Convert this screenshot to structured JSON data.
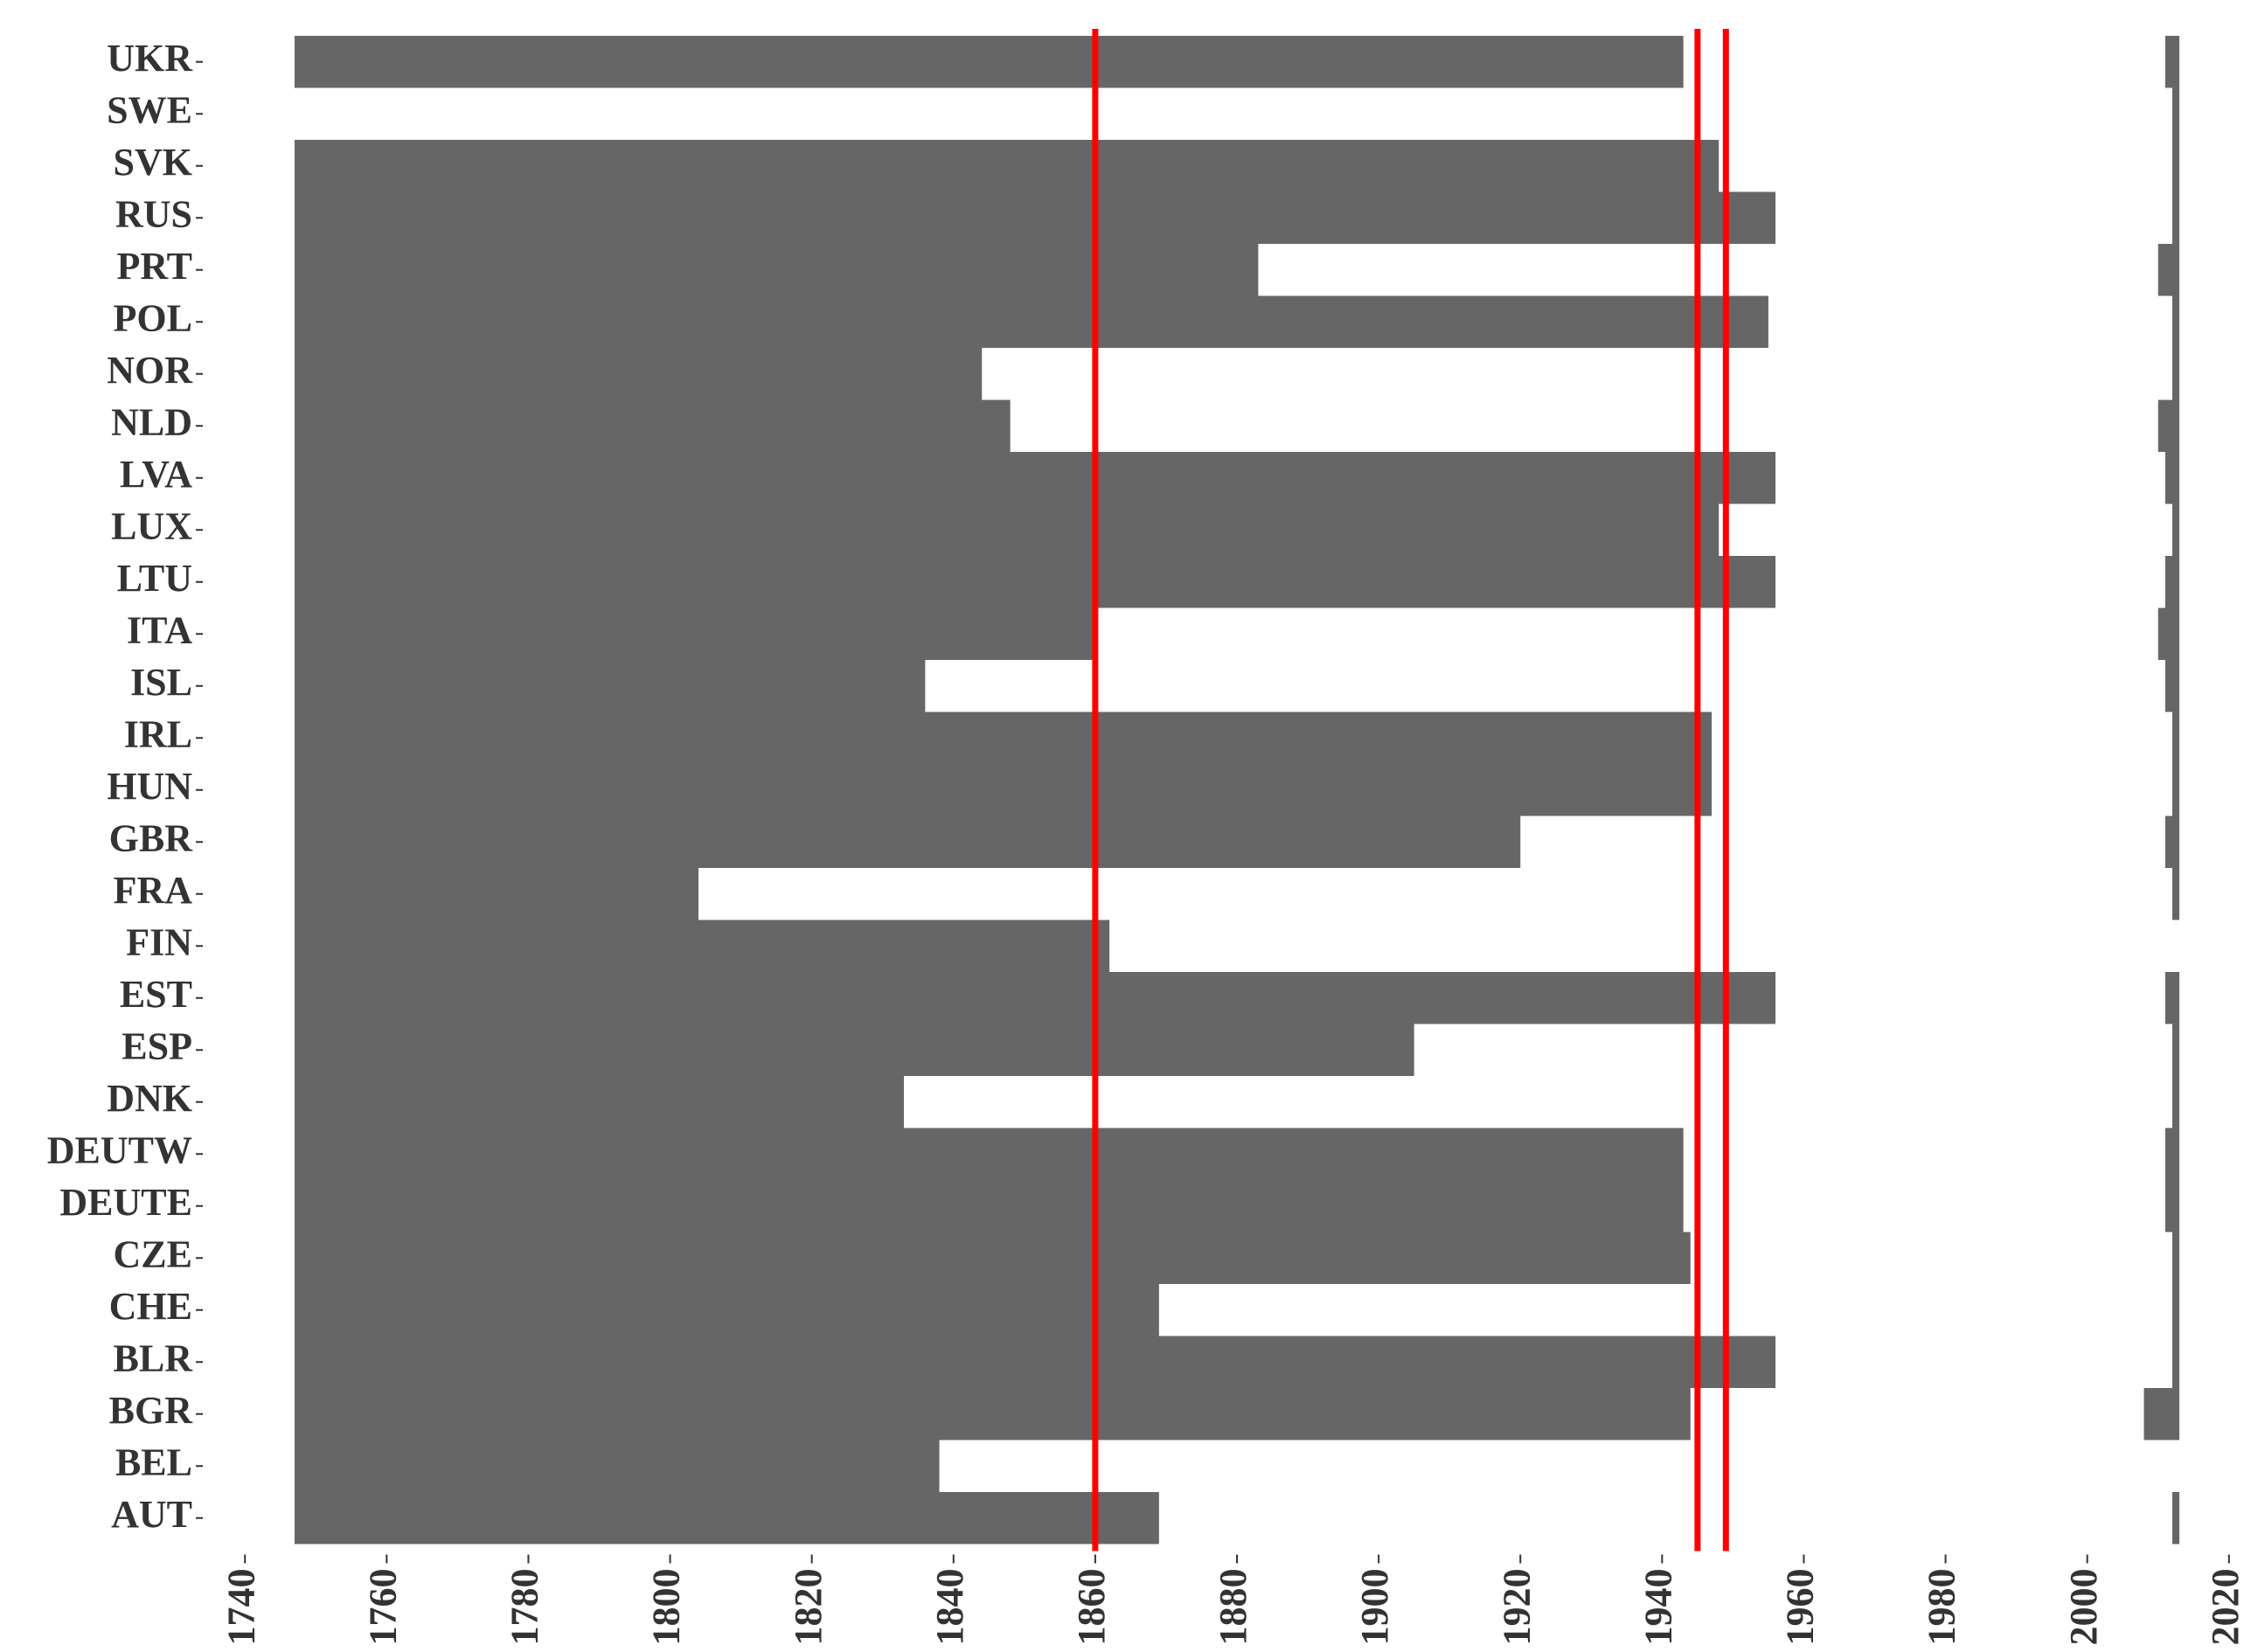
{
  "chart_data": {
    "type": "range_bar",
    "categories": [
      "UKR",
      "SWE",
      "SVK",
      "RUS",
      "PRT",
      "POL",
      "NOR",
      "NLD",
      "LVA",
      "LUX",
      "LTU",
      "ITA",
      "ISL",
      "IRL",
      "HUN",
      "GBR",
      "FRA",
      "FIN",
      "EST",
      "ESP",
      "DNK",
      "DEUTW",
      "DEUTE",
      "CZE",
      "CHE",
      "BLR",
      "BGR",
      "BEL",
      "AUT"
    ],
    "start": [
      1747,
      null,
      1747,
      1747,
      1747,
      1747,
      1747,
      1747,
      1747,
      1747,
      1747,
      1747,
      1747,
      1747,
      1747,
      1747,
      1747,
      1747,
      1747,
      1747,
      1747,
      1747,
      1747,
      1747,
      1747,
      1747,
      1747,
      1747,
      1747
    ],
    "end": [
      1943,
      null,
      1948,
      1956,
      1883,
      1955,
      1844,
      1848,
      1956,
      1948,
      1956,
      1860,
      1836,
      1947,
      1947,
      1920,
      1804,
      1862,
      1956,
      1905,
      1833,
      1943,
      1943,
      1944,
      1869,
      1956,
      1944,
      1838,
      1869
    ],
    "recent_start": [
      2011,
      2012,
      2012,
      2012,
      2010,
      2012,
      2012,
      2010,
      2011,
      2012,
      2011,
      2010,
      2011,
      2012,
      2012,
      2011,
      2012,
      null,
      2011,
      2012,
      2012,
      2011,
      2011,
      2012,
      2012,
      2012,
      2008,
      null,
      2012
    ],
    "recent_end": [
      2013,
      2013,
      2013,
      2013,
      2013,
      2013,
      2013,
      2013,
      2013,
      2013,
      2013,
      2013,
      2013,
      2013,
      2013,
      2013,
      2013,
      null,
      2013,
      2013,
      2013,
      2013,
      2013,
      2013,
      2013,
      2013,
      2013,
      null,
      2013
    ],
    "color": "#666666",
    "vlines": [
      1860,
      1945,
      1949
    ],
    "vline_color": "#ff0000",
    "xlim": [
      1738,
      2022
    ],
    "xticks": [
      1740,
      1760,
      1780,
      1800,
      1820,
      1840,
      1860,
      1880,
      1900,
      1920,
      1940,
      1960,
      1980,
      2000,
      2020
    ]
  }
}
